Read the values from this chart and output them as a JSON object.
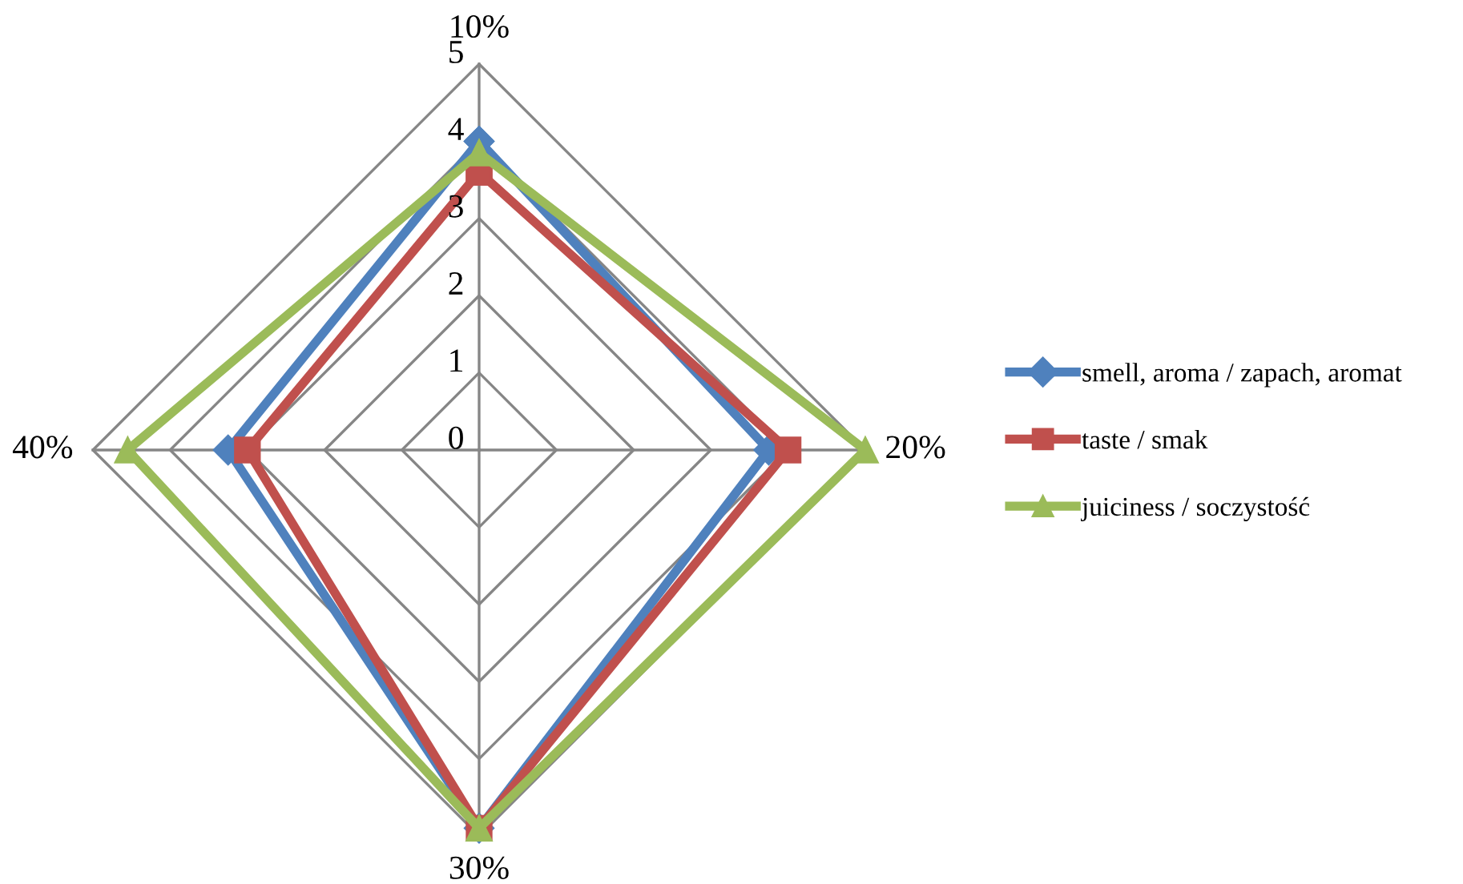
{
  "chart_data": {
    "type": "radar",
    "categories": [
      "10%",
      "20%",
      "30%",
      "40%"
    ],
    "ylim": [
      0,
      5
    ],
    "yticks": [
      0,
      1,
      2,
      3,
      4,
      5
    ],
    "grid": true,
    "legend": "right",
    "series": [
      {
        "name": "smell, aroma / zapach, aromat",
        "color": "#4f81bd",
        "marker": "diamond",
        "values": [
          4.0,
          3.75,
          4.9,
          3.25
        ]
      },
      {
        "name": "taste / smak",
        "color": "#c0504d",
        "marker": "square",
        "values": [
          3.6,
          4.0,
          4.9,
          3.0
        ]
      },
      {
        "name": "juiciness / soczystość",
        "color": "#9bbb59",
        "marker": "triangle",
        "values": [
          3.85,
          5.0,
          4.9,
          4.55
        ]
      }
    ]
  }
}
